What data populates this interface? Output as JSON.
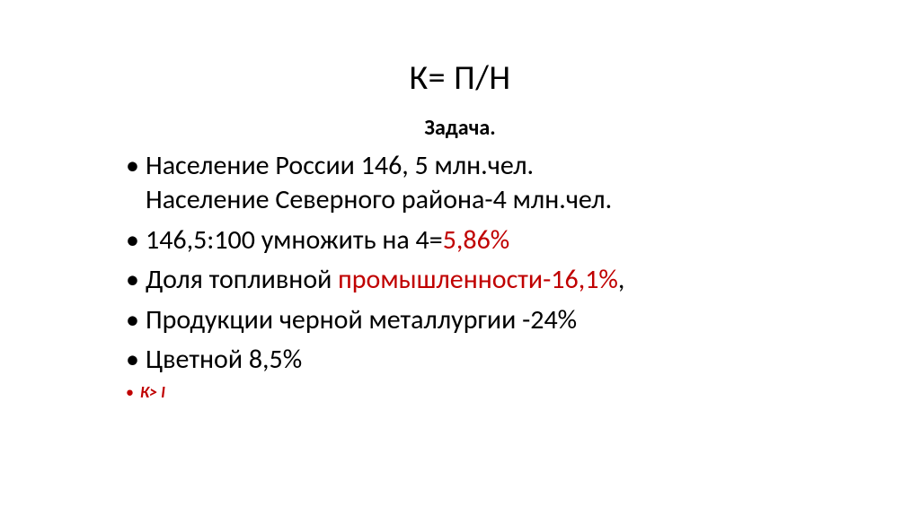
{
  "title": "К= П/Н",
  "subtitle": "Задача.",
  "bullets": {
    "b1_a": "Население России 146, 5 млн.чел.",
    "b1_b": "Население Северного района-4 млн.чел.",
    "b2_a": "146,5:100 умножить на 4=",
    "b2_b": "5,86%",
    "b3_a": "Доля топливной ",
    "b3_b": "промышленности-16,1%",
    "b3_c": ",",
    "b4": "Продукции черной металлургии -24%",
    "b5": "Цветной 8,5%",
    "b6": "К> I"
  },
  "colors": {
    "text": "#000000",
    "accent": "#c00000",
    "background": "#ffffff"
  }
}
